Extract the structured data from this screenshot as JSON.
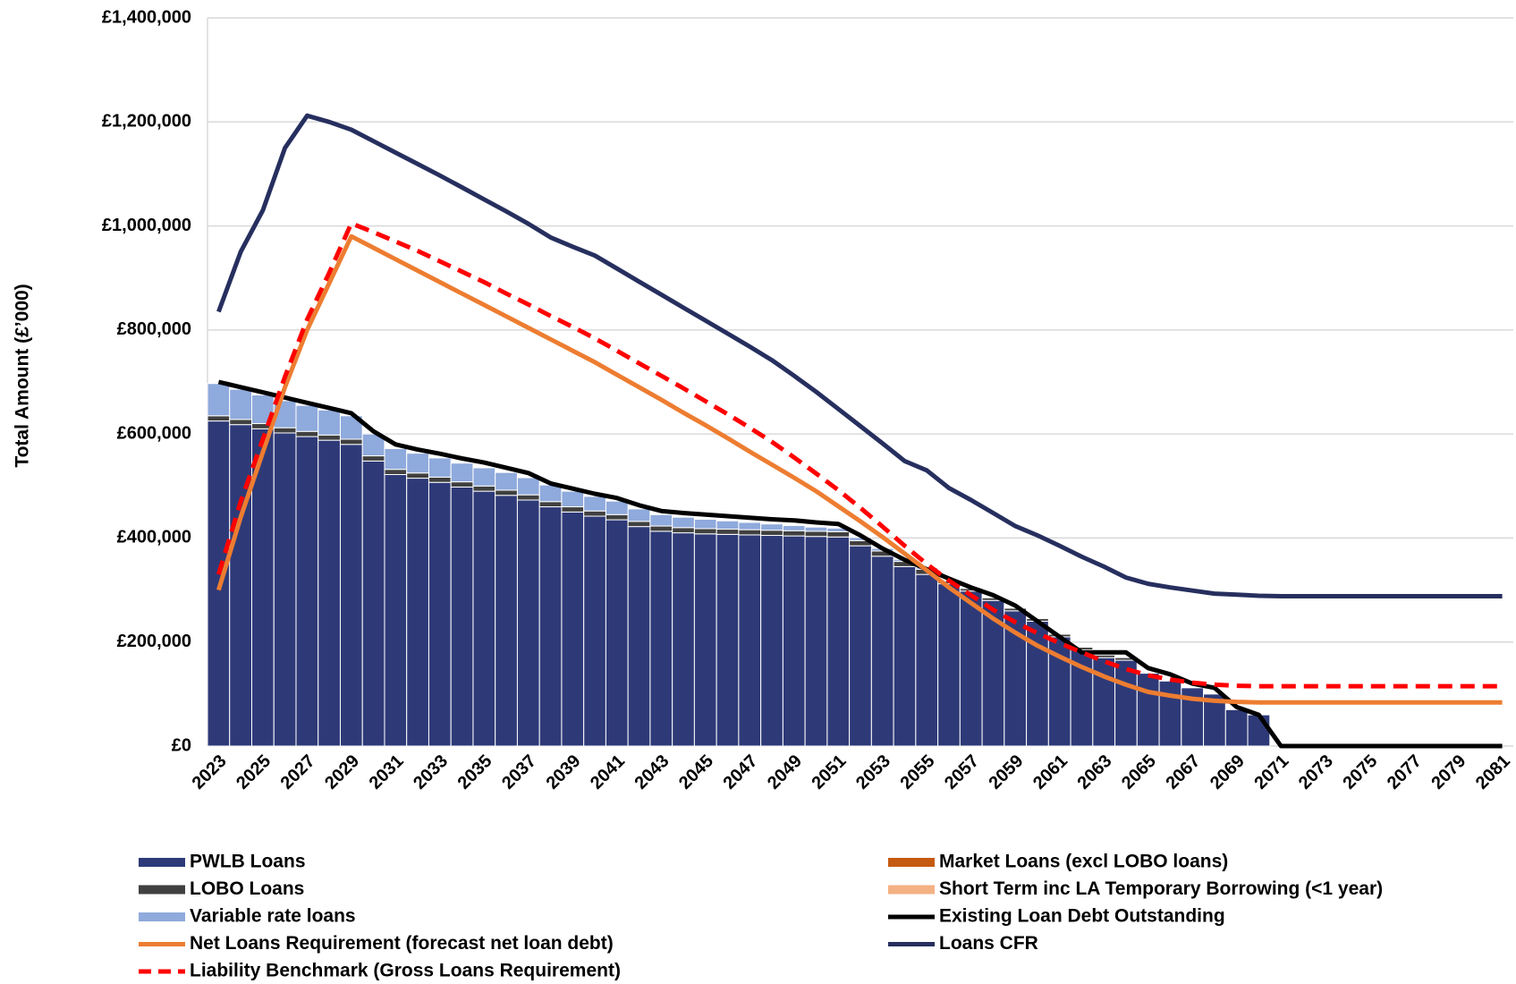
{
  "chart_data": {
    "type": "bar",
    "y_label": "Total Amount (£’000)",
    "categories": [
      "2023",
      null,
      "2025",
      null,
      "2027",
      null,
      "2029",
      null,
      "2031",
      null,
      "2033",
      null,
      "2035",
      null,
      "2037",
      null,
      "2039",
      null,
      "2041",
      null,
      "2043",
      null,
      "2045",
      null,
      "2047",
      null,
      "2049",
      null,
      "2051",
      null,
      "2053",
      null,
      "2055",
      null,
      "2057",
      null,
      "2059",
      null,
      "2061",
      null,
      "2063",
      null,
      "2065",
      null,
      "2067",
      null,
      "2069",
      null,
      "2071",
      null,
      "2073",
      null,
      "2075",
      null,
      "2077",
      null,
      "2079",
      null,
      "2081"
    ],
    "ylim": [
      0,
      1400000
    ],
    "yticks": [
      {
        "value": 0,
        "label": "£0"
      },
      {
        "value": 200000,
        "label": "£200,000"
      },
      {
        "value": 400000,
        "label": "£400,000"
      },
      {
        "value": 600000,
        "label": "£600,000"
      },
      {
        "value": 800000,
        "label": "£800,000"
      },
      {
        "value": 1000000,
        "label": "£1,000,000"
      },
      {
        "value": 1200000,
        "label": "£1,200,000"
      },
      {
        "value": 1400000,
        "label": "£1,400,000"
      }
    ],
    "grid": true,
    "legend": "bottom",
    "series": [
      {
        "name": "PWLB Loans",
        "type": "bar",
        "color": "#2e3a78",
        "values": [
          625000,
          618000,
          610000,
          602000,
          595000,
          588000,
          580000,
          548000,
          522000,
          515000,
          507000,
          498000,
          490000,
          482000,
          473000,
          460000,
          450000,
          442000,
          435000,
          422000,
          413000,
          410000,
          408000,
          407000,
          406000,
          405000,
          404000,
          403000,
          402000,
          385000,
          365000,
          345000,
          330000,
          312000,
          298000,
          280000,
          260000,
          240000,
          210000,
          185000,
          170000,
          165000,
          140000,
          125000,
          112000,
          100000,
          70000,
          60000,
          0,
          0,
          0,
          0,
          0,
          0,
          0,
          0,
          0,
          0,
          0
        ]
      },
      {
        "name": "Market Loans (excl LOBO loans)",
        "type": "bar",
        "color": "#c55a11",
        "values": [
          0,
          0,
          0,
          0,
          0,
          0,
          0,
          0,
          0,
          0,
          0,
          0,
          0,
          0,
          0,
          0,
          0,
          0,
          0,
          0,
          0,
          0,
          0,
          0,
          0,
          0,
          0,
          0,
          0,
          0,
          0,
          0,
          0,
          0,
          0,
          0,
          0,
          0,
          0,
          0,
          0,
          0,
          0,
          0,
          0,
          0,
          0,
          0,
          0,
          0,
          0,
          0,
          0,
          0,
          0,
          0,
          0,
          0,
          0
        ]
      },
      {
        "name": "LOBO Loans",
        "type": "bar",
        "color": "#404040",
        "values": [
          10000,
          10000,
          10000,
          10000,
          10000,
          10000,
          10000,
          10000,
          10000,
          10000,
          10000,
          10000,
          10000,
          10000,
          10000,
          10000,
          10000,
          10000,
          10000,
          10000,
          10000,
          10000,
          10000,
          10000,
          10000,
          10000,
          10000,
          10000,
          10000,
          10000,
          10000,
          10000,
          10000,
          5000,
          5000,
          5000,
          5000,
          5000,
          5000,
          5000,
          5000,
          5000,
          0,
          0,
          0,
          0,
          0,
          0,
          0,
          0,
          0,
          0,
          0,
          0,
          0,
          0,
          0,
          0,
          0
        ]
      },
      {
        "name": "Short Term inc LA Temporary Borrowing (<1 year)",
        "type": "bar",
        "color": "#f4b183",
        "values": [
          0,
          0,
          0,
          0,
          0,
          0,
          0,
          0,
          0,
          0,
          0,
          0,
          0,
          0,
          0,
          0,
          0,
          0,
          0,
          0,
          0,
          0,
          0,
          0,
          0,
          0,
          0,
          0,
          0,
          0,
          0,
          0,
          0,
          0,
          0,
          0,
          0,
          0,
          0,
          0,
          0,
          0,
          0,
          0,
          0,
          0,
          0,
          0,
          0,
          0,
          0,
          0,
          0,
          0,
          0,
          0,
          0,
          0,
          0
        ]
      },
      {
        "name": "Variable rate loans",
        "type": "bar",
        "color": "#8faadc",
        "values": [
          62000,
          58000,
          55000,
          52000,
          50000,
          48000,
          45000,
          42000,
          40000,
          38000,
          37000,
          36000,
          35000,
          34000,
          33000,
          32000,
          30000,
          28000,
          26000,
          24000,
          22000,
          20000,
          18000,
          16000,
          14000,
          12000,
          10000,
          8000,
          7000,
          6000,
          5000,
          4000,
          3000,
          2000,
          2000,
          0,
          0,
          0,
          0,
          0,
          0,
          0,
          0,
          0,
          0,
          0,
          0,
          0,
          0,
          0,
          0,
          0,
          0,
          0,
          0,
          0,
          0,
          0,
          0
        ]
      },
      {
        "name": "Existing Loan Debt Outstanding",
        "type": "line",
        "color": "#000000",
        "values": [
          700000,
          690000,
          680000,
          670000,
          660000,
          650000,
          640000,
          605000,
          580000,
          570000,
          562000,
          553000,
          545000,
          535000,
          525000,
          505000,
          495000,
          485000,
          477000,
          463000,
          452000,
          448000,
          445000,
          442000,
          439000,
          436000,
          434000,
          430000,
          427000,
          405000,
          380000,
          358000,
          340000,
          322000,
          305000,
          290000,
          270000,
          240000,
          210000,
          180000,
          180000,
          180000,
          150000,
          138000,
          120000,
          112000,
          75000,
          60000,
          0,
          0,
          0,
          0,
          0,
          0,
          0,
          0,
          0,
          0,
          0
        ]
      },
      {
        "name": "Net Loans Requirement (forecast net loan debt)",
        "type": "line",
        "color": "#ed7d31",
        "values": [
          300000,
          440000,
          565000,
          690000,
          800000,
          890000,
          980000,
          958000,
          936000,
          914000,
          892000,
          870000,
          848000,
          826000,
          804000,
          782000,
          760000,
          738000,
          714000,
          690000,
          666000,
          641000,
          617000,
          592000,
          566000,
          541000,
          516000,
          490000,
          461000,
          432000,
          402000,
          370000,
          338000,
          305000,
          275000,
          245000,
          218000,
          193000,
          172000,
          152000,
          134000,
          118000,
          104000,
          97000,
          91000,
          87000,
          85000,
          84000,
          84000,
          84000,
          84000,
          84000,
          84000,
          84000,
          84000,
          84000,
          84000,
          84000,
          84000
        ]
      },
      {
        "name": "Loans CFR",
        "type": "line",
        "color": "#262f5e",
        "values": [
          835000,
          950000,
          1030000,
          1150000,
          1212000,
          1200000,
          1185000,
          1163000,
          1141000,
          1119000,
          1097000,
          1074000,
          1051000,
          1028000,
          1004000,
          978000,
          960000,
          943000,
          918000,
          893000,
          868000,
          843000,
          818000,
          793000,
          768000,
          742000,
          712000,
          681000,
          648000,
          615000,
          582000,
          548000,
          530000,
          496000,
          473000,
          448000,
          423000,
          405000,
          385000,
          364000,
          345000,
          324000,
          312000,
          305000,
          299000,
          293000,
          291000,
          289000,
          288000,
          288000,
          288000,
          288000,
          288000,
          288000,
          288000,
          288000,
          288000,
          288000,
          288000
        ]
      },
      {
        "name": "Liability Benchmark (Gross Loans Requirement)",
        "type": "line",
        "dashed": true,
        "color": "#ff0000",
        "values": [
          330000,
          470000,
          590000,
          710000,
          820000,
          910000,
          1005000,
          988000,
          970000,
          952000,
          932000,
          912000,
          892000,
          870000,
          849000,
          827000,
          806000,
          784000,
          760000,
          736000,
          712000,
          688000,
          663000,
          638000,
          612000,
          585000,
          555000,
          524000,
          492000,
          458000,
          422000,
          385000,
          350000,
          318000,
          290000,
          262000,
          238000,
          217000,
          198000,
          180000,
          163000,
          148000,
          136000,
          128000,
          122000,
          118000,
          116000,
          115000,
          115000,
          115000,
          115000,
          115000,
          115000,
          115000,
          115000,
          115000,
          115000,
          115000,
          115000
        ]
      }
    ]
  }
}
